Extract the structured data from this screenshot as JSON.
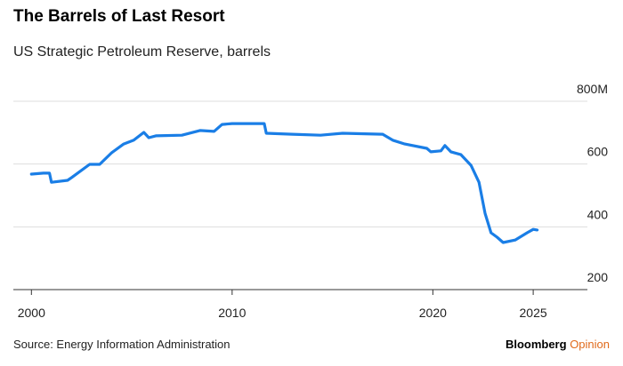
{
  "chart_data": {
    "type": "line",
    "title": "The Barrels of Last Resort",
    "subtitle": "US Strategic Petroleum Reserve, barrels",
    "source": "Source: Energy Information Administration",
    "brand": "Bloomberg",
    "brand_suffix": "Opinion",
    "x": [
      2000.0,
      2000.6,
      2000.9,
      2001.0,
      2001.8,
      2002.0,
      2002.9,
      2003.4,
      2004.0,
      2004.6,
      2005.1,
      2005.6,
      2005.85,
      2006.2,
      2007.5,
      2008.4,
      2009.1,
      2009.5,
      2010.0,
      2011.6,
      2011.7,
      2013.0,
      2014.4,
      2015.5,
      2017.5,
      2018.0,
      2018.6,
      2019.7,
      2019.9,
      2020.4,
      2020.6,
      2020.9,
      2021.4,
      2021.9,
      2022.3,
      2022.6,
      2022.9,
      2023.2,
      2023.5,
      2024.1,
      2024.7,
      2025.0,
      2025.2
    ],
    "series": [
      {
        "name": "US Strategic Petroleum Reserve",
        "color": "#1a7ee6",
        "values": [
          568,
          571,
          571,
          542,
          548,
          557,
          599,
          599,
          636,
          664,
          676,
          701,
          684,
          690,
          692,
          707,
          704,
          726,
          729,
          729,
          698,
          695,
          692,
          698,
          695,
          676,
          664,
          650,
          639,
          642,
          659,
          639,
          630,
          596,
          542,
          443,
          381,
          367,
          350,
          358,
          381,
          392,
          390
        ]
      }
    ],
    "xlim": [
      1999.1,
      2027.7
    ],
    "xticks": [
      2000,
      2010,
      2020,
      2025
    ],
    "ylim": [
      200,
      800
    ],
    "yticks": [
      {
        "value": 800,
        "label": "800M"
      },
      600,
      400,
      200
    ],
    "grid": true
  }
}
